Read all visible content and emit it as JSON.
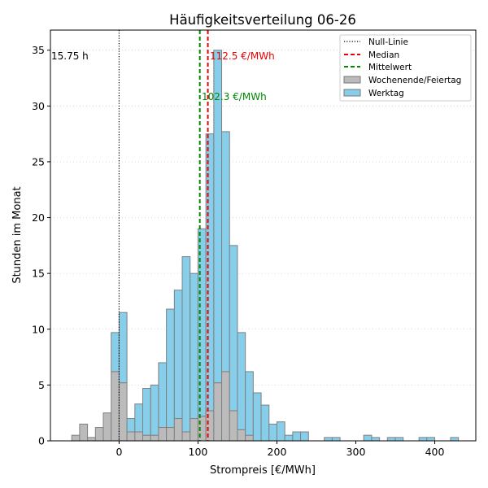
{
  "chart_data": {
    "type": "bar",
    "title": "Häufigkeitsverteilung 06-26",
    "xlabel": "Strompreis [€/MWh]",
    "ylabel": "Stunden im Monat",
    "xlim": [
      -87,
      452
    ],
    "ylim": [
      0,
      36.8
    ],
    "x_ticks": [
      0,
      100,
      200,
      300,
      400
    ],
    "y_ticks": [
      0,
      5,
      10,
      15,
      20,
      25,
      30,
      35
    ],
    "grid": "horizontal-dotted",
    "legend_placement": "top-right",
    "bin_width": 10,
    "stacked": true,
    "bins": [
      -60,
      -50,
      -40,
      -30,
      -20,
      -10,
      0,
      10,
      20,
      30,
      40,
      50,
      60,
      70,
      80,
      90,
      100,
      110,
      120,
      130,
      140,
      150,
      160,
      170,
      180,
      190,
      200,
      210,
      220,
      230,
      240,
      250,
      260,
      270,
      280,
      290,
      300,
      310,
      320,
      330,
      340,
      350,
      360,
      370,
      380,
      390,
      400,
      410,
      420
    ],
    "series": [
      {
        "name": "Wochenende/Feiertag",
        "color": "#bbbbbb",
        "values": [
          0.5,
          1.5,
          0.3,
          1.2,
          2.5,
          6.2,
          5.2,
          0.8,
          0.8,
          0.5,
          0.5,
          1.2,
          1.2,
          2.0,
          0.8,
          2.0,
          2.2,
          2.7,
          5.2,
          6.2,
          2.7,
          1.0,
          0.5,
          0,
          0,
          0,
          0,
          0,
          0,
          0,
          0,
          0,
          0,
          0,
          0,
          0,
          0,
          0,
          0,
          0,
          0,
          0,
          0,
          0,
          0,
          0,
          0,
          0,
          0
        ]
      },
      {
        "name": "Werktag",
        "color": "#87ceeb",
        "values": [
          0,
          0,
          0,
          0,
          0,
          3.5,
          6.3,
          1.2,
          2.5,
          4.2,
          4.5,
          5.8,
          10.6,
          11.5,
          15.7,
          13.0,
          16.8,
          24.8,
          29.8,
          21.5,
          14.8,
          8.7,
          5.7,
          4.3,
          3.2,
          1.5,
          1.7,
          0.5,
          0.8,
          0.8,
          0,
          0,
          0.3,
          0.3,
          0,
          0,
          0,
          0.5,
          0.3,
          0,
          0.3,
          0.3,
          0,
          0,
          0.3,
          0.3,
          0,
          0,
          0.3
        ]
      }
    ],
    "lines": [
      {
        "name": "Null-Linie",
        "x": 0,
        "color": "#000000",
        "style": "dotted"
      },
      {
        "name": "Median",
        "x": 112.5,
        "color": "#ee0000",
        "style": "dashed"
      },
      {
        "name": "Mittelwert",
        "x": 102.3,
        "color": "#008800",
        "style": "dashed"
      }
    ],
    "annotations": [
      {
        "text": "15.75 h",
        "color": "#000000"
      },
      {
        "text": "112.5 €/MWh",
        "color": "#ee0000"
      },
      {
        "text": "102.3 €/MWh",
        "color": "#008800"
      }
    ]
  }
}
